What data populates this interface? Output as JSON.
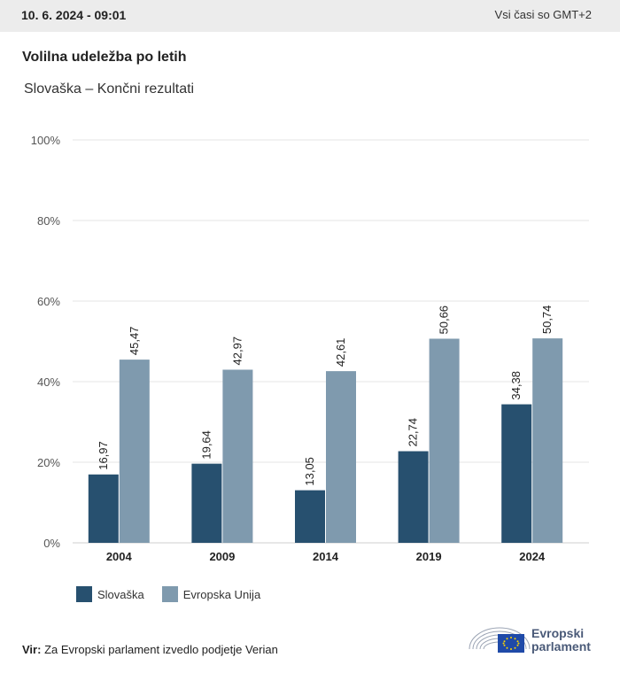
{
  "header": {
    "date": "10. 6. 2024 - 09:01",
    "timezone": "Vsi časi so GMT+2"
  },
  "title": "Volilna udeležba po letih",
  "subtitle": "Slovaška – Končni rezultati",
  "chart_data": {
    "type": "bar",
    "categories": [
      "2004",
      "2009",
      "2014",
      "2019",
      "2024"
    ],
    "series": [
      {
        "name": "Slovaška",
        "values": [
          16.97,
          19.64,
          13.05,
          22.74,
          34.38
        ],
        "labels": [
          "16,97",
          "19,64",
          "13,05",
          "22,74",
          "34,38"
        ],
        "color": "#27506f"
      },
      {
        "name": "Evropska Unija",
        "values": [
          45.47,
          42.97,
          42.61,
          50.66,
          50.74
        ],
        "labels": [
          "45,47",
          "42,97",
          "42,61",
          "50,66",
          "50,74"
        ],
        "color": "#7f9aae"
      }
    ],
    "ylim": [
      0,
      100
    ],
    "yticks": [
      0,
      20,
      40,
      60,
      80,
      100
    ],
    "ytick_labels": [
      "0%",
      "20%",
      "40%",
      "60%",
      "80%",
      "100%"
    ],
    "grid": true,
    "legend_position": "bottom-left",
    "xlabel": "",
    "ylabel": ""
  },
  "source": {
    "label": "Vir:",
    "text": "Za Evropski parlament izvedlo podjetje Verian"
  },
  "logo": {
    "line1": "Evropski",
    "line2": "parlament"
  }
}
